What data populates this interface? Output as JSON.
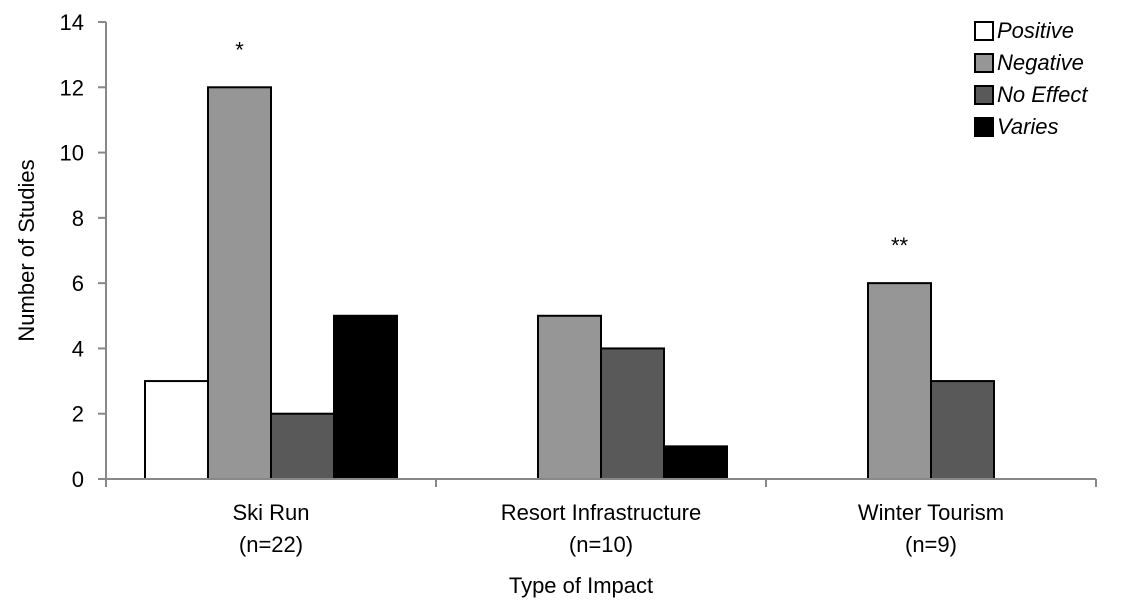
{
  "chart_data": {
    "type": "bar",
    "title": "",
    "xlabel": "Type of Impact",
    "ylabel": "Number of Studies",
    "ylim": [
      0,
      14
    ],
    "yticks": [
      0,
      2,
      4,
      6,
      8,
      10,
      12,
      14
    ],
    "grid": false,
    "legend_position": "top-right",
    "categories": [
      {
        "name": "Ski Run",
        "n": "(n=22)"
      },
      {
        "name": "Resort Infrastructure",
        "n": "(n=10)"
      },
      {
        "name": "Winter Tourism",
        "n": "(n=9)"
      }
    ],
    "series": [
      {
        "name": "Positive",
        "color": "#ffffff",
        "values": [
          3,
          0,
          0
        ]
      },
      {
        "name": "Negative",
        "color": "#969696",
        "values": [
          12,
          5,
          6
        ]
      },
      {
        "name": "No Effect",
        "color": "#595959",
        "values": [
          2,
          4,
          3
        ]
      },
      {
        "name": "Varies",
        "color": "#000000",
        "values": [
          5,
          1,
          0
        ]
      }
    ],
    "annotations": [
      {
        "text": "*",
        "category": 0,
        "series": 1
      },
      {
        "text": "**",
        "category": 2,
        "series": 1
      }
    ]
  }
}
